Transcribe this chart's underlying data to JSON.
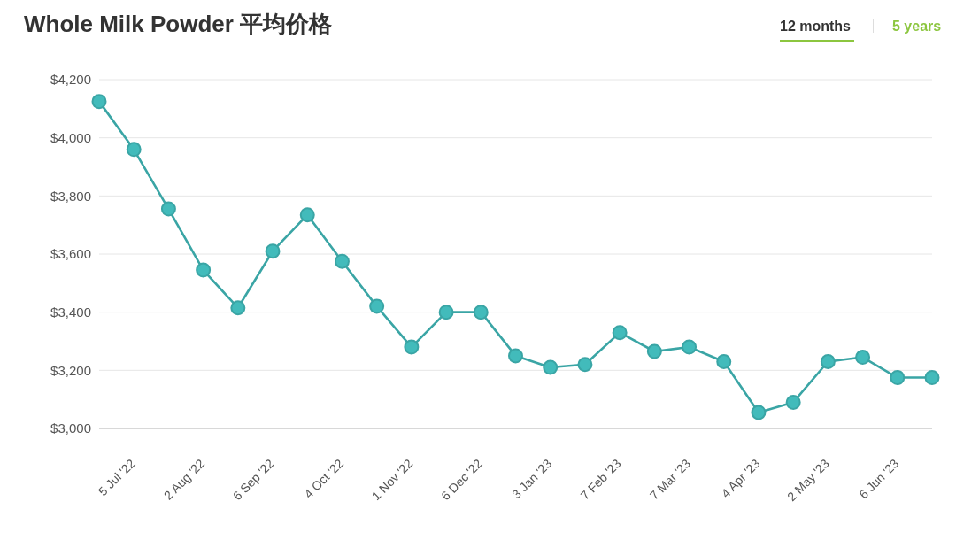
{
  "chart_data": {
    "type": "line",
    "title": "Whole Milk Powder 平均价格",
    "annotations": [
      "12 months",
      "5 years"
    ],
    "categories": [
      null,
      "5 Jul '22",
      null,
      "2 Aug '22",
      null,
      "6 Sep '22",
      null,
      "4 Oct '22",
      null,
      "1 Nov '22",
      null,
      "6 Dec '22",
      null,
      "3 Jan '23",
      null,
      "7 Feb '23",
      null,
      "7 Mar '23",
      null,
      "4 Apr '23",
      null,
      "2 May '23",
      null,
      "6 Jun '23",
      null
    ],
    "series": [
      {
        "color": "#3aa5a5",
        "values": [
          4125,
          3960,
          3755,
          3545,
          3415,
          3610,
          3735,
          3575,
          3420,
          3280,
          3400,
          3400,
          3250,
          3210,
          3220,
          3330,
          3265,
          3280,
          3230,
          3055,
          3090,
          3230,
          3245,
          3175,
          3175
        ]
      }
    ],
    "ylim": [
      3000,
      4200
    ],
    "yticks": [
      {
        "value": 3000,
        "label": "$3,000"
      },
      {
        "value": 3200,
        "label": "$3,200"
      },
      {
        "value": 3400,
        "label": "$3,400"
      },
      {
        "value": 3600,
        "label": "$3,600"
      },
      {
        "value": 3800,
        "label": "$3,800"
      },
      {
        "value": 4000,
        "label": "$4,000"
      },
      {
        "value": 4200,
        "label": "$4,200"
      }
    ],
    "grid": "y",
    "marker": "circle",
    "line_style": "solid"
  }
}
